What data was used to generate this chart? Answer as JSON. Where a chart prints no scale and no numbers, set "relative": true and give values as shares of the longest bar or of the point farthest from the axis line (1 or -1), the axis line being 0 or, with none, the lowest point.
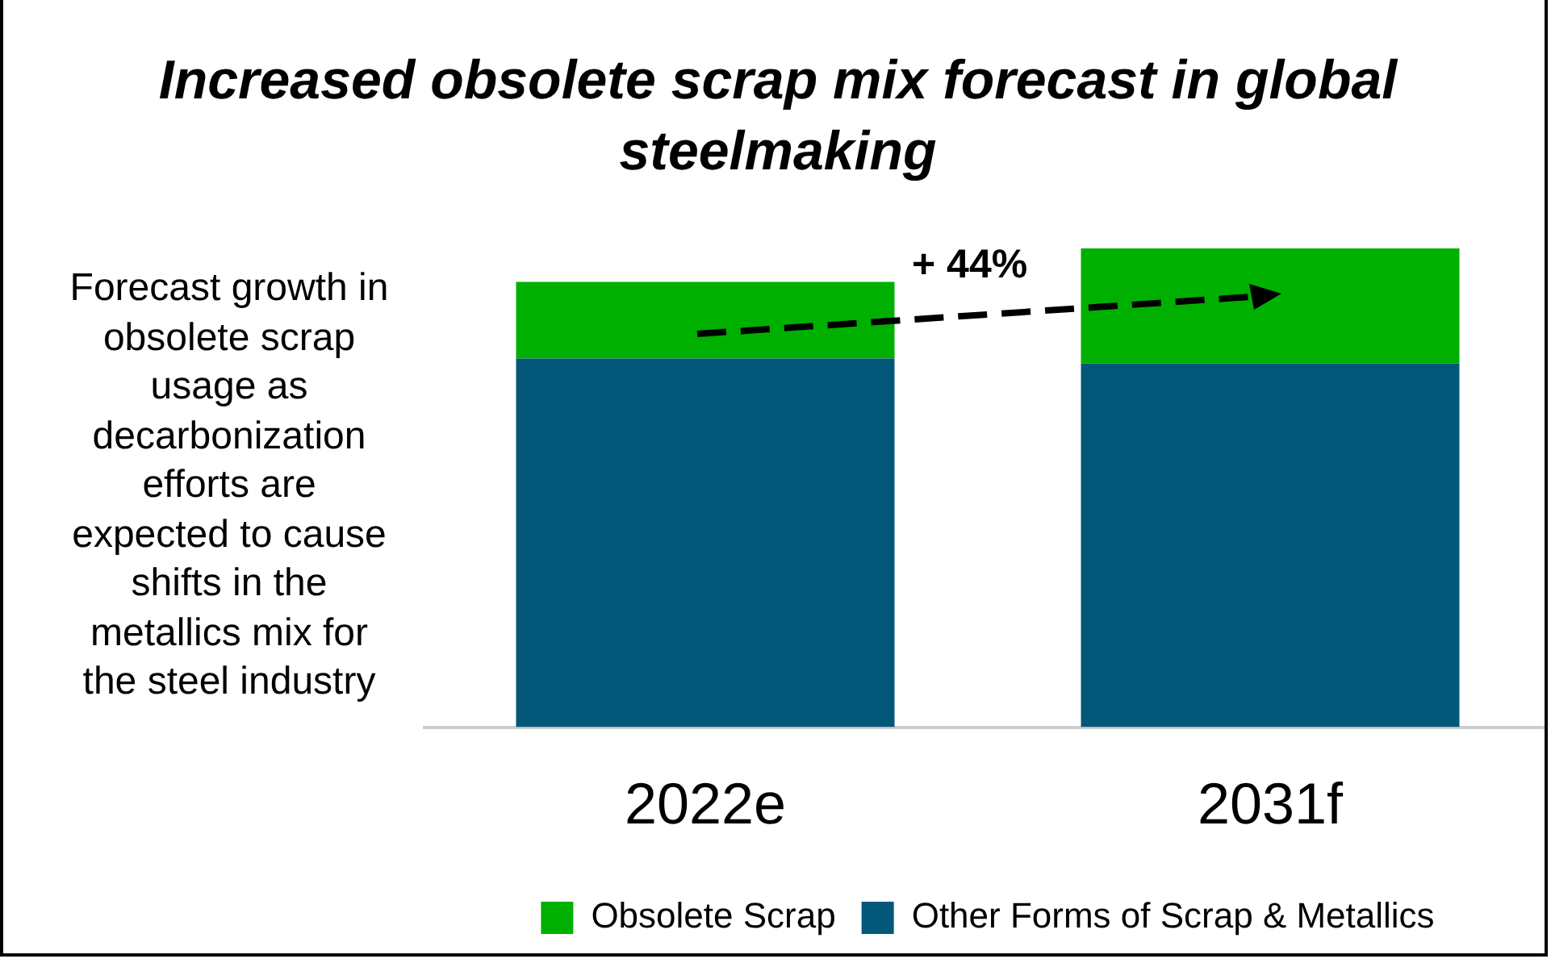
{
  "chart_data": {
    "type": "bar",
    "title": "Increased obsolete scrap mix forecast in global steelmaking",
    "categories": [
      "2022e",
      "2031f"
    ],
    "stacked": true,
    "relative": true,
    "legend": "bottom",
    "series": [
      {
        "name": "Other Forms of Scrap & Metallics",
        "color": "#03587a",
        "values": [
          0.77,
          0.76
        ]
      },
      {
        "name": "Obsolete Scrap",
        "color": "#00b000",
        "values": [
          0.16,
          0.24
        ]
      }
    ],
    "annotations": [
      "Forecast growth in obsolete scrap usage as decarbonization efforts are expected to cause shifts in the metallics mix for the steel industry",
      "+ 44%"
    ]
  }
}
